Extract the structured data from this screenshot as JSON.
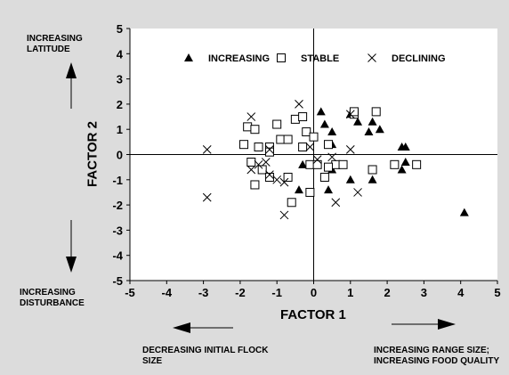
{
  "chart_data": {
    "type": "scatter",
    "title": "",
    "xlabel": "FACTOR 1",
    "ylabel": "FACTOR 2",
    "xlim": [
      -5,
      5
    ],
    "ylim": [
      -5,
      5
    ],
    "xticks": [
      -5,
      -4,
      -3,
      -2,
      -1,
      0,
      1,
      2,
      3,
      4,
      5
    ],
    "yticks": [
      -5,
      -4,
      -3,
      -2,
      -1,
      0,
      1,
      2,
      3,
      4,
      5
    ],
    "grid": false,
    "legend_position": "top",
    "series": [
      {
        "name": "INCREASING",
        "marker": "filled-triangle",
        "points": [
          [
            0.2,
            1.7
          ],
          [
            0.5,
            0.9
          ],
          [
            0.3,
            1.2
          ],
          [
            0.5,
            0.4
          ],
          [
            1.0,
            1.6
          ],
          [
            1.2,
            1.3
          ],
          [
            1.5,
            0.9
          ],
          [
            1.6,
            1.3
          ],
          [
            1.8,
            1.0
          ],
          [
            2.4,
            0.3
          ],
          [
            2.5,
            0.3
          ],
          [
            2.5,
            -0.3
          ],
          [
            2.4,
            -0.6
          ],
          [
            -0.3,
            -0.4
          ],
          [
            -0.4,
            -1.4
          ],
          [
            0.4,
            -1.4
          ],
          [
            0.5,
            -0.6
          ],
          [
            1.0,
            -1.0
          ],
          [
            1.6,
            -1.0
          ],
          [
            4.1,
            -2.3
          ]
        ]
      },
      {
        "name": "STABLE",
        "marker": "open-square",
        "points": [
          [
            -1.8,
            1.1
          ],
          [
            -1.6,
            1.0
          ],
          [
            -1.0,
            1.2
          ],
          [
            -0.5,
            1.4
          ],
          [
            -0.3,
            1.5
          ],
          [
            1.1,
            1.6
          ],
          [
            1.1,
            1.7
          ],
          [
            1.7,
            1.7
          ],
          [
            -1.9,
            0.4
          ],
          [
            -1.5,
            0.3
          ],
          [
            -1.2,
            0.3
          ],
          [
            -1.2,
            0.1
          ],
          [
            -0.9,
            0.6
          ],
          [
            -0.7,
            0.6
          ],
          [
            -0.2,
            0.9
          ],
          [
            0.0,
            0.7
          ],
          [
            0.4,
            0.4
          ],
          [
            -0.3,
            0.3
          ],
          [
            -1.7,
            -0.3
          ],
          [
            -1.6,
            -1.2
          ],
          [
            -1.4,
            -0.6
          ],
          [
            -1.2,
            -0.9
          ],
          [
            -0.7,
            -0.9
          ],
          [
            -0.1,
            -0.4
          ],
          [
            0.1,
            -0.4
          ],
          [
            0.3,
            -0.9
          ],
          [
            0.6,
            -0.4
          ],
          [
            0.8,
            -0.4
          ],
          [
            1.6,
            -0.6
          ],
          [
            2.2,
            -0.4
          ],
          [
            2.8,
            -0.4
          ],
          [
            -0.1,
            -1.5
          ],
          [
            -0.6,
            -1.9
          ],
          [
            0.4,
            -0.5
          ]
        ]
      },
      {
        "name": "DECLINING",
        "marker": "x",
        "points": [
          [
            -2.9,
            0.2
          ],
          [
            -2.9,
            -1.7
          ],
          [
            -1.7,
            1.5
          ],
          [
            -1.7,
            -0.6
          ],
          [
            -1.5,
            -0.4
          ],
          [
            -1.3,
            -0.3
          ],
          [
            -1.2,
            -0.8
          ],
          [
            -1.0,
            -1.0
          ],
          [
            -0.8,
            -1.1
          ],
          [
            -0.8,
            -2.4
          ],
          [
            -0.4,
            2.0
          ],
          [
            -0.1,
            0.3
          ],
          [
            0.1,
            -0.2
          ],
          [
            0.5,
            -0.1
          ],
          [
            0.6,
            -1.9
          ],
          [
            1.0,
            1.6
          ],
          [
            1.0,
            0.2
          ],
          [
            1.2,
            -1.5
          ],
          [
            -1.2,
            0.2
          ]
        ]
      }
    ]
  },
  "annotations": {
    "top_left": [
      "INCREASING",
      "LATITUDE"
    ],
    "bottom_left": [
      "INCREASING",
      "DISTURBANCE"
    ],
    "bottom_center": [
      "DECREASING INITIAL FLOCK",
      "SIZE"
    ],
    "bottom_right": [
      "INCREASING RANGE SIZE;",
      "INCREASING FOOD QUALITY"
    ]
  },
  "colors": {
    "figure_background": "#dcdcdc",
    "plot_background": "#ffffff",
    "ink": "#000000"
  }
}
